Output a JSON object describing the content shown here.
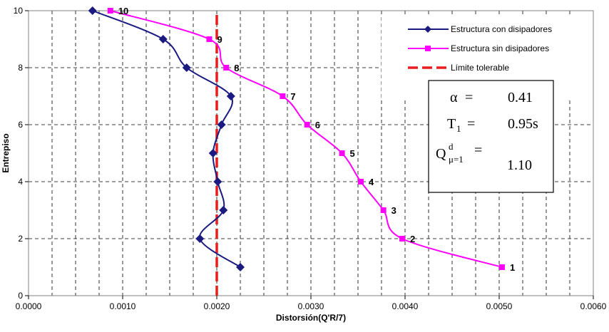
{
  "chart_data": {
    "type": "line",
    "title": "",
    "xlabel": "Distorsión(Q'R/7)",
    "ylabel": "Entrepiso",
    "xlim": [
      0,
      0.006
    ],
    "ylim": [
      0,
      10
    ],
    "x_ticks": [
      0,
      0.001,
      0.002,
      0.003,
      0.004,
      0.005,
      0.006
    ],
    "x_tick_labels": [
      "0.0000",
      "0.0010",
      "0.0020",
      "0.0030",
      "0.0040",
      "0.0050",
      "0.0060"
    ],
    "y_ticks": [
      0,
      2,
      4,
      6,
      8,
      10
    ],
    "y_tick_labels": [
      "0",
      "2",
      "4",
      "6",
      "8",
      "10"
    ],
    "grid": true,
    "legend_position": "top-right",
    "series": [
      {
        "name": "Estructura con disipadores",
        "color": "#1a1a80",
        "marker": "diamond",
        "x": [
          0.00225,
          0.00182,
          0.00207,
          0.00201,
          0.00196,
          0.00205,
          0.00215,
          0.00168,
          0.00143,
          0.00068
        ],
        "y": [
          1,
          2,
          3,
          4,
          5,
          6,
          7,
          8,
          9,
          10
        ]
      },
      {
        "name": "Estructura sin disipadores",
        "color": "#ff00ff",
        "marker": "square",
        "x": [
          0.00503,
          0.00397,
          0.00377,
          0.00353,
          0.00333,
          0.00296,
          0.0027,
          0.0021,
          0.00192,
          0.00087
        ],
        "y": [
          1,
          2,
          3,
          4,
          5,
          6,
          7,
          8,
          9,
          10
        ],
        "point_labels": [
          "1",
          "2",
          "3",
          "4",
          "5",
          "6",
          "7",
          "8",
          "9",
          "10"
        ]
      },
      {
        "name": "Límite tolerable",
        "color": "#e81e1e",
        "style": "dashed",
        "x": [
          0.002,
          0.002
        ],
        "y": [
          0,
          10
        ]
      }
    ]
  },
  "info_box": {
    "alpha_symbol": "α",
    "alpha_eq": "=",
    "alpha_value": "0.41",
    "t_symbol": "T",
    "t_sub": "1",
    "t_eq": "=",
    "t_value": "0.95s",
    "q_symbol": "Q",
    "q_sup": "d",
    "q_sub": "μ=1",
    "q_eq": "=",
    "q_value": "1.10"
  }
}
